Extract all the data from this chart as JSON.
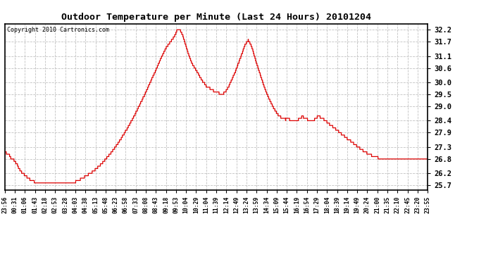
{
  "title": "Outdoor Temperature per Minute (Last 24 Hours) 20101204",
  "copyright": "Copyright 2010 Cartronics.com",
  "line_color": "#dd0000",
  "bg_color": "#ffffff",
  "grid_color": "#bbbbbb",
  "yticks": [
    25.7,
    26.2,
    26.8,
    27.3,
    27.9,
    28.4,
    29.0,
    29.5,
    30.0,
    30.6,
    31.1,
    31.7,
    32.2
  ],
  "ylim": [
    25.5,
    32.45
  ],
  "xtick_labels": [
    "23:56",
    "00:31",
    "01:06",
    "01:43",
    "02:18",
    "02:53",
    "03:28",
    "04:03",
    "04:38",
    "05:13",
    "05:48",
    "06:23",
    "06:58",
    "07:33",
    "08:08",
    "08:43",
    "09:18",
    "09:53",
    "10:04",
    "10:29",
    "11:04",
    "11:39",
    "12:14",
    "12:49",
    "13:24",
    "13:59",
    "14:34",
    "15:09",
    "15:44",
    "16:19",
    "16:54",
    "17:29",
    "18:04",
    "18:39",
    "19:14",
    "19:49",
    "20:24",
    "21:00",
    "21:35",
    "22:10",
    "22:45",
    "23:20",
    "23:55"
  ],
  "control_points": [
    [
      0,
      27.1
    ],
    [
      5,
      27.05
    ],
    [
      10,
      27.0
    ],
    [
      15,
      26.95
    ],
    [
      20,
      26.85
    ],
    [
      30,
      26.75
    ],
    [
      40,
      26.6
    ],
    [
      50,
      26.35
    ],
    [
      60,
      26.2
    ],
    [
      70,
      26.1
    ],
    [
      80,
      25.98
    ],
    [
      95,
      25.87
    ],
    [
      107,
      25.82
    ],
    [
      120,
      25.78
    ],
    [
      140,
      25.76
    ],
    [
      160,
      25.76
    ],
    [
      180,
      25.77
    ],
    [
      200,
      25.78
    ],
    [
      220,
      25.8
    ],
    [
      240,
      25.85
    ],
    [
      250,
      25.9
    ],
    [
      260,
      25.98
    ],
    [
      270,
      26.05
    ],
    [
      280,
      26.12
    ],
    [
      290,
      26.2
    ],
    [
      300,
      26.28
    ],
    [
      310,
      26.38
    ],
    [
      320,
      26.5
    ],
    [
      330,
      26.62
    ],
    [
      340,
      26.75
    ],
    [
      350,
      26.9
    ],
    [
      360,
      27.05
    ],
    [
      370,
      27.2
    ],
    [
      380,
      27.38
    ],
    [
      390,
      27.55
    ],
    [
      400,
      27.75
    ],
    [
      410,
      27.95
    ],
    [
      420,
      28.15
    ],
    [
      430,
      28.38
    ],
    [
      440,
      28.6
    ],
    [
      450,
      28.85
    ],
    [
      460,
      29.1
    ],
    [
      470,
      29.35
    ],
    [
      480,
      29.6
    ],
    [
      490,
      29.88
    ],
    [
      500,
      30.15
    ],
    [
      510,
      30.42
    ],
    [
      520,
      30.7
    ],
    [
      530,
      30.98
    ],
    [
      540,
      31.25
    ],
    [
      550,
      31.48
    ],
    [
      560,
      31.65
    ],
    [
      565,
      31.72
    ],
    [
      570,
      31.8
    ],
    [
      575,
      31.9
    ],
    [
      580,
      32.0
    ],
    [
      583,
      32.1
    ],
    [
      586,
      32.18
    ],
    [
      589,
      32.22
    ],
    [
      592,
      32.2
    ],
    [
      596,
      32.18
    ],
    [
      600,
      32.1
    ],
    [
      605,
      31.95
    ],
    [
      610,
      31.75
    ],
    [
      615,
      31.55
    ],
    [
      620,
      31.35
    ],
    [
      625,
      31.18
    ],
    [
      630,
      31.0
    ],
    [
      635,
      30.85
    ],
    [
      640,
      30.72
    ],
    [
      645,
      30.62
    ],
    [
      650,
      30.52
    ],
    [
      655,
      30.42
    ],
    [
      658,
      30.35
    ],
    [
      661,
      30.28
    ],
    [
      664,
      30.22
    ],
    [
      667,
      30.15
    ],
    [
      670,
      30.1
    ],
    [
      673,
      30.05
    ],
    [
      676,
      30.0
    ],
    [
      679,
      29.95
    ],
    [
      682,
      29.9
    ],
    [
      685,
      29.85
    ],
    [
      688,
      29.82
    ],
    [
      691,
      29.8
    ],
    [
      694,
      29.78
    ],
    [
      697,
      29.75
    ],
    [
      700,
      29.72
    ],
    [
      703,
      29.7
    ],
    [
      706,
      29.68
    ],
    [
      710,
      29.65
    ],
    [
      714,
      29.62
    ],
    [
      718,
      29.6
    ],
    [
      722,
      29.58
    ],
    [
      726,
      29.56
    ],
    [
      730,
      29.54
    ],
    [
      733,
      29.53
    ],
    [
      736,
      29.52
    ],
    [
      739,
      29.52
    ],
    [
      742,
      29.53
    ],
    [
      745,
      29.55
    ],
    [
      748,
      29.58
    ],
    [
      751,
      29.62
    ],
    [
      754,
      29.68
    ],
    [
      758,
      29.75
    ],
    [
      762,
      29.85
    ],
    [
      767,
      29.98
    ],
    [
      772,
      30.12
    ],
    [
      778,
      30.28
    ],
    [
      784,
      30.45
    ],
    [
      790,
      30.65
    ],
    [
      796,
      30.85
    ],
    [
      802,
      31.05
    ],
    [
      808,
      31.25
    ],
    [
      813,
      31.42
    ],
    [
      817,
      31.55
    ],
    [
      821,
      31.65
    ],
    [
      825,
      31.72
    ],
    [
      828,
      31.75
    ],
    [
      831,
      31.72
    ],
    [
      834,
      31.65
    ],
    [
      838,
      31.52
    ],
    [
      843,
      31.35
    ],
    [
      849,
      31.1
    ],
    [
      855,
      30.85
    ],
    [
      862,
      30.58
    ],
    [
      870,
      30.28
    ],
    [
      878,
      29.98
    ],
    [
      886,
      29.7
    ],
    [
      895,
      29.42
    ],
    [
      904,
      29.18
    ],
    [
      913,
      28.95
    ],
    [
      922,
      28.78
    ],
    [
      930,
      28.65
    ],
    [
      938,
      28.55
    ],
    [
      945,
      28.5
    ],
    [
      950,
      28.47
    ],
    [
      955,
      28.45
    ],
    [
      960,
      28.48
    ],
    [
      963,
      28.5
    ],
    [
      966,
      28.48
    ],
    [
      969,
      28.45
    ],
    [
      972,
      28.43
    ],
    [
      976,
      28.42
    ],
    [
      983,
      28.42
    ],
    [
      990,
      28.43
    ],
    [
      998,
      28.45
    ],
    [
      1005,
      28.5
    ],
    [
      1010,
      28.55
    ],
    [
      1015,
      28.55
    ],
    [
      1020,
      28.52
    ],
    [
      1025,
      28.48
    ],
    [
      1030,
      28.45
    ],
    [
      1038,
      28.43
    ],
    [
      1045,
      28.42
    ],
    [
      1053,
      28.45
    ],
    [
      1058,
      28.5
    ],
    [
      1063,
      28.55
    ],
    [
      1068,
      28.56
    ],
    [
      1072,
      28.55
    ],
    [
      1078,
      28.52
    ],
    [
      1083,
      28.48
    ],
    [
      1088,
      28.42
    ],
    [
      1095,
      28.35
    ],
    [
      1102,
      28.28
    ],
    [
      1110,
      28.2
    ],
    [
      1118,
      28.12
    ],
    [
      1123,
      28.08
    ],
    [
      1130,
      28.0
    ],
    [
      1138,
      27.92
    ],
    [
      1145,
      27.85
    ],
    [
      1153,
      27.78
    ],
    [
      1158,
      27.72
    ],
    [
      1165,
      27.65
    ],
    [
      1172,
      27.58
    ],
    [
      1180,
      27.52
    ],
    [
      1187,
      27.45
    ],
    [
      1193,
      27.38
    ],
    [
      1200,
      27.32
    ],
    [
      1208,
      27.25
    ],
    [
      1215,
      27.18
    ],
    [
      1222,
      27.12
    ],
    [
      1228,
      27.08
    ],
    [
      1235,
      27.02
    ],
    [
      1242,
      26.98
    ],
    [
      1249,
      26.94
    ],
    [
      1256,
      26.9
    ],
    [
      1264,
      26.87
    ],
    [
      1272,
      26.84
    ],
    [
      1280,
      26.82
    ],
    [
      1288,
      26.8
    ],
    [
      1299,
      26.78
    ],
    [
      1310,
      26.77
    ],
    [
      1320,
      26.77
    ],
    [
      1330,
      26.77
    ],
    [
      1334,
      26.78
    ],
    [
      1340,
      26.79
    ],
    [
      1350,
      26.8
    ],
    [
      1360,
      26.8
    ],
    [
      1369,
      26.8
    ],
    [
      1380,
      26.8
    ],
    [
      1390,
      26.8
    ],
    [
      1395,
      26.8
    ],
    [
      1404,
      26.8
    ],
    [
      1415,
      26.82
    ],
    [
      1420,
      26.82
    ],
    [
      1428,
      26.82
    ],
    [
      1434,
      26.82
    ],
    [
      1439,
      26.8
    ]
  ]
}
